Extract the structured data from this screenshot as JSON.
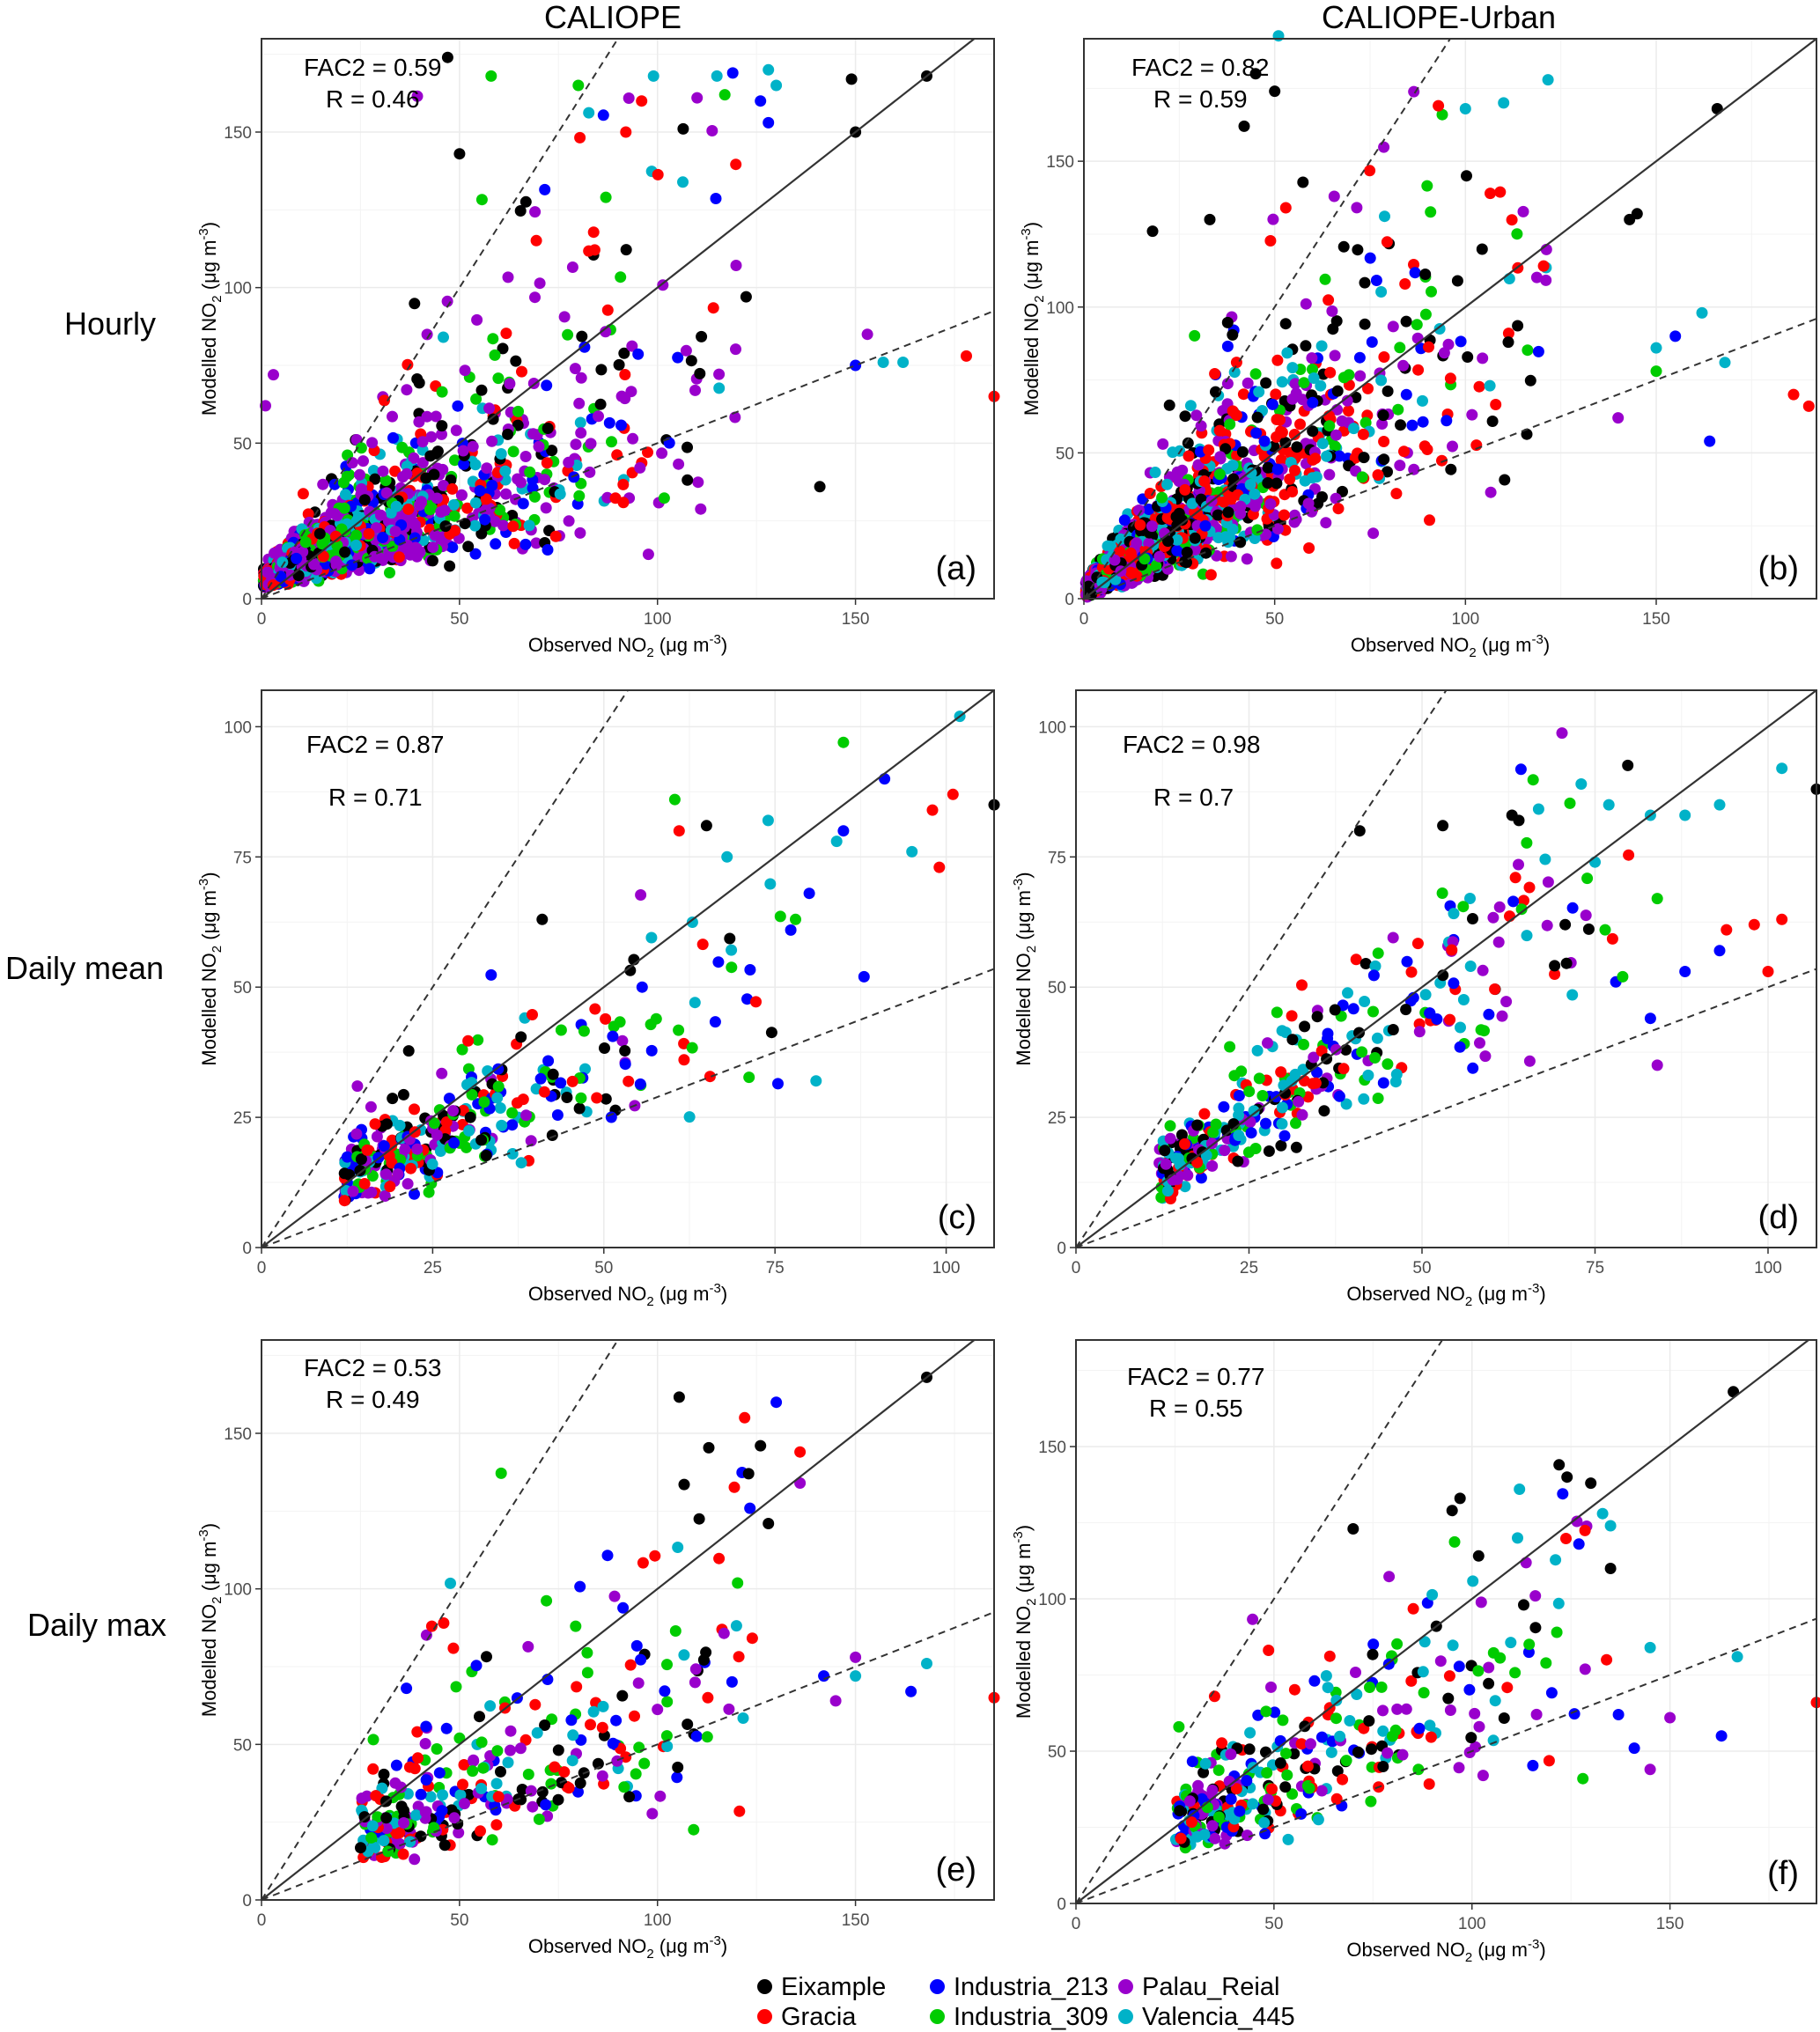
{
  "figure": {
    "column_titles": [
      "CALIOPE",
      "CALIOPE-Urban"
    ],
    "row_titles": [
      "Hourly",
      "Daily mean",
      "Daily max"
    ],
    "grid_color": "#ebebeb",
    "frame_color": "#333333",
    "one_to_one_color": "#333333",
    "fac2_line_color": "#333333"
  },
  "legend": {
    "items": [
      {
        "label": "Eixample",
        "color": "#000000"
      },
      {
        "label": "Gracia",
        "color": "#ff0000"
      },
      {
        "label": "Industria_213",
        "color": "#0000ff"
      },
      {
        "label": "Industria_309",
        "color": "#00cc00"
      },
      {
        "label": "Palau_Reial",
        "color": "#9900cc"
      },
      {
        "label": "Valencia_445",
        "color": "#00b2c8"
      }
    ]
  },
  "chart_data": [
    {
      "type": "scatter",
      "panel_label": "(a)",
      "column": "CALIOPE",
      "row": "Hourly",
      "xlabel": "Observed NO2 (μg m-3)",
      "ylabel": "Modelled NO2 (μg m-3)",
      "xlim": [
        0,
        185
      ],
      "ylim": [
        0,
        180
      ],
      "xticks": [
        0,
        50,
        100,
        150
      ],
      "yticks": [
        0,
        50,
        100,
        150
      ],
      "stats": [
        "FAC2 = 0.59",
        "R = 0.46"
      ],
      "lines": {
        "one_to_one": true,
        "fac2_upper_slope": 2,
        "fac2_lower_slope": 0.5
      },
      "cloud": {
        "n": 1500,
        "seed": 11,
        "xmax": 165,
        "xmean": 30,
        "slope": 0.55,
        "spread": 0.55,
        "offset": 6,
        "site_weights": [
          0.14,
          0.14,
          0.1,
          0.14,
          0.34,
          0.14
        ]
      },
      "series": [
        {
          "name": "Eixample",
          "points": [
            [
              168,
              168
            ],
            [
              149,
              167
            ],
            [
              150,
              150
            ],
            [
              141,
              36
            ],
            [
              47,
              174
            ],
            [
              50,
              143
            ]
          ]
        },
        {
          "name": "Gracia",
          "points": [
            [
              185,
              65
            ],
            [
              178,
              78
            ],
            [
              96,
              160
            ],
            [
              92,
              150
            ]
          ]
        },
        {
          "name": "Industria_213",
          "points": [
            [
              150,
              75
            ],
            [
              126,
              160
            ],
            [
              119,
              169
            ],
            [
              128,
              153
            ]
          ]
        },
        {
          "name": "Industria_309",
          "points": [
            [
              58,
              168
            ],
            [
              117,
              162
            ],
            [
              80,
              165
            ]
          ]
        },
        {
          "name": "Palau_Reial",
          "points": [
            [
              1,
              62
            ],
            [
              3,
              72
            ],
            [
              110,
              161
            ],
            [
              153,
              85
            ]
          ]
        },
        {
          "name": "Valencia_445",
          "points": [
            [
              115,
              168
            ],
            [
              128,
              170
            ],
            [
              130,
              165
            ],
            [
              162,
              76
            ],
            [
              157,
              76
            ],
            [
              99,
              168
            ]
          ]
        }
      ]
    },
    {
      "type": "scatter",
      "panel_label": "(b)",
      "column": "CALIOPE-Urban",
      "row": "Hourly",
      "xlabel": "Observed NO2 (μg m-3)",
      "ylabel": "Modelled NO2 (μg m-3)",
      "xlim": [
        0,
        192
      ],
      "ylim": [
        0,
        192
      ],
      "xticks": [
        0,
        50,
        100,
        150
      ],
      "yticks": [
        0,
        50,
        100,
        150
      ],
      "stats": [
        "FAC2 = 0.82",
        "R = 0.59"
      ],
      "lines": {
        "one_to_one": true,
        "fac2_upper_slope": 2,
        "fac2_lower_slope": 0.5
      },
      "cloud": {
        "n": 1500,
        "seed": 23,
        "xmax": 150,
        "xmean": 30,
        "slope": 0.85,
        "spread": 0.42,
        "offset": 3,
        "site_weights": [
          0.18,
          0.24,
          0.1,
          0.1,
          0.24,
          0.14
        ]
      },
      "series": [
        {
          "name": "Eixample",
          "points": [
            [
              166,
              168
            ],
            [
              45,
              180
            ],
            [
              50,
              174
            ],
            [
              42,
              162
            ],
            [
              18,
              126
            ],
            [
              33,
              130
            ],
            [
              143,
              130
            ],
            [
              145,
              132
            ]
          ]
        },
        {
          "name": "Gracia",
          "points": [
            [
              186,
              70
            ],
            [
              190,
              66
            ]
          ]
        },
        {
          "name": "Industria_213",
          "points": [
            [
              164,
              54
            ],
            [
              155,
              90
            ]
          ]
        },
        {
          "name": "Industria_309",
          "points": [
            [
              150,
              78
            ]
          ]
        },
        {
          "name": "Palau_Reial",
          "points": [
            [
              140,
              62
            ]
          ]
        },
        {
          "name": "Valencia_445",
          "points": [
            [
              51,
              193
            ],
            [
              100,
              168
            ],
            [
              110,
              170
            ],
            [
              150,
              86
            ],
            [
              162,
              98
            ],
            [
              168,
              81
            ]
          ]
        }
      ]
    },
    {
      "type": "scatter",
      "panel_label": "(c)",
      "column": "CALIOPE",
      "row": "Daily mean",
      "xlabel": "Observed NO2 (μg m-3)",
      "ylabel": "Modelled NO2 (μg m-3)",
      "xlim": [
        0,
        107
      ],
      "ylim": [
        0,
        107
      ],
      "xticks": [
        0,
        25,
        50,
        75,
        100
      ],
      "yticks": [
        0,
        25,
        50,
        75,
        100
      ],
      "stats": [
        "FAC2 = 0.87",
        "R = 0.71"
      ],
      "lines": {
        "one_to_one": true,
        "fac2_upper_slope": 2,
        "fac2_lower_slope": 0.5
      },
      "cloud": {
        "n": 330,
        "seed": 37,
        "xmin": 12,
        "xmax": 78,
        "xmean": 20,
        "slope": 0.62,
        "spread": 0.3,
        "offset": 6,
        "site_weights": [
          0.16,
          0.17,
          0.16,
          0.17,
          0.17,
          0.17
        ]
      },
      "series": [
        {
          "name": "Eixample",
          "points": [
            [
              107,
              85
            ],
            [
              41,
              63
            ],
            [
              65,
              81
            ]
          ]
        },
        {
          "name": "Gracia",
          "points": [
            [
              101,
              87
            ],
            [
              98,
              84
            ],
            [
              99,
              73
            ],
            [
              61,
              80
            ]
          ]
        },
        {
          "name": "Industria_213",
          "points": [
            [
              91,
              90
            ],
            [
              88,
              52
            ],
            [
              85,
              80
            ],
            [
              80,
              68
            ]
          ]
        },
        {
          "name": "Industria_309",
          "points": [
            [
              85,
              97
            ],
            [
              78,
              63
            ]
          ]
        },
        {
          "name": "Palau_Reial",
          "points": [
            [
              14,
              31
            ],
            [
              16,
              27
            ]
          ]
        },
        {
          "name": "Valencia_445",
          "points": [
            [
              102,
              102
            ],
            [
              95,
              76
            ],
            [
              84,
              78
            ],
            [
              81,
              32
            ],
            [
              74,
              82
            ],
            [
              68,
              75
            ]
          ]
        }
      ]
    },
    {
      "type": "scatter",
      "panel_label": "(d)",
      "column": "CALIOPE-Urban",
      "row": "Daily mean",
      "xlabel": "Observed NO2 (μg m-3)",
      "ylabel": "Modelled NO2 (μg m-3)",
      "xlim": [
        0,
        107
      ],
      "ylim": [
        0,
        107
      ],
      "xticks": [
        0,
        25,
        50,
        75,
        100
      ],
      "yticks": [
        0,
        25,
        50,
        75,
        100
      ],
      "stats": [
        "FAC2 = 0.98",
        "R = 0.7"
      ],
      "lines": {
        "one_to_one": true,
        "fac2_upper_slope": 2,
        "fac2_lower_slope": 0.5
      },
      "cloud": {
        "n": 330,
        "seed": 53,
        "xmin": 12,
        "xmax": 80,
        "xmean": 28,
        "slope": 0.85,
        "spread": 0.22,
        "offset": 4,
        "site_weights": [
          0.16,
          0.17,
          0.16,
          0.17,
          0.17,
          0.17
        ]
      },
      "series": [
        {
          "name": "Eixample",
          "points": [
            [
              107,
              88
            ],
            [
              41,
              80
            ],
            [
              53,
              81
            ],
            [
              63,
              83
            ],
            [
              64,
              82
            ]
          ]
        },
        {
          "name": "Gracia",
          "points": [
            [
              102,
              63
            ],
            [
              98,
              62
            ],
            [
              94,
              61
            ],
            [
              100,
              53
            ]
          ]
        },
        {
          "name": "Industria_213",
          "points": [
            [
              93,
              57
            ],
            [
              88,
              53
            ],
            [
              83,
              44
            ],
            [
              78,
              51
            ]
          ]
        },
        {
          "name": "Industria_309",
          "points": [
            [
              84,
              67
            ],
            [
              79,
              52
            ]
          ]
        },
        {
          "name": "Palau_Reial",
          "points": [
            [
              84,
              35
            ],
            [
              14,
              13
            ],
            [
              13,
              16
            ]
          ]
        },
        {
          "name": "Valencia_445",
          "points": [
            [
              102,
              92
            ],
            [
              93,
              85
            ],
            [
              88,
              83
            ],
            [
              83,
              83
            ],
            [
              77,
              85
            ],
            [
              73,
              89
            ],
            [
              75,
              74
            ]
          ]
        }
      ]
    },
    {
      "type": "scatter",
      "panel_label": "(e)",
      "column": "CALIOPE",
      "row": "Daily max",
      "xlabel": "Observed NO2 (μg m-3)",
      "ylabel": "Modelled NO2 (μg m-3)",
      "xlim": [
        0,
        185
      ],
      "ylim": [
        0,
        180
      ],
      "xticks": [
        0,
        50,
        100,
        150
      ],
      "yticks": [
        0,
        50,
        100,
        150
      ],
      "stats": [
        "FAC2 = 0.53",
        "R = 0.49"
      ],
      "lines": {
        "one_to_one": true,
        "fac2_upper_slope": 2,
        "fac2_lower_slope": 0.5
      },
      "cloud": {
        "n": 320,
        "seed": 71,
        "xmin": 25,
        "xmax": 125,
        "xmean": 50,
        "slope": 0.55,
        "spread": 0.5,
        "offset": 8,
        "site_weights": [
          0.16,
          0.17,
          0.16,
          0.17,
          0.17,
          0.17
        ]
      },
      "series": [
        {
          "name": "Eixample",
          "points": [
            [
              168,
              168
            ],
            [
              128,
              121
            ],
            [
              126,
              146
            ],
            [
              123,
              137
            ]
          ]
        },
        {
          "name": "Gracia",
          "points": [
            [
              185,
              65
            ],
            [
              136,
              144
            ],
            [
              122,
              155
            ],
            [
              43,
              88
            ],
            [
              46,
              89
            ]
          ]
        },
        {
          "name": "Industria_213",
          "points": [
            [
              164,
              67
            ],
            [
              130,
              160
            ],
            [
              142,
              72
            ]
          ]
        },
        {
          "name": "Industria_309",
          "points": [
            [
              50,
              52
            ]
          ]
        },
        {
          "name": "Palau_Reial",
          "points": [
            [
              150,
              78
            ],
            [
              145,
              64
            ],
            [
              136,
              134
            ]
          ]
        },
        {
          "name": "Valencia_445",
          "points": [
            [
              168,
              76
            ],
            [
              150,
              72
            ]
          ]
        }
      ]
    },
    {
      "type": "scatter",
      "panel_label": "(f)",
      "column": "CALIOPE-Urban",
      "row": "Daily max",
      "xlabel": "Observed NO2 (μg m-3)",
      "ylabel": "Modelled NO2 (μg m-3)",
      "xlim": [
        0,
        187
      ],
      "ylim": [
        0,
        185
      ],
      "xticks": [
        0,
        50,
        100,
        150
      ],
      "yticks": [
        0,
        50,
        100,
        150
      ],
      "stats": [
        "FAC2 = 0.77",
        "R = 0.55"
      ],
      "lines": {
        "one_to_one": true,
        "fac2_upper_slope": 2,
        "fac2_lower_slope": 0.5
      },
      "cloud": {
        "n": 330,
        "seed": 97,
        "xmin": 25,
        "xmax": 130,
        "xmean": 48,
        "slope": 0.66,
        "spread": 0.32,
        "offset": 8,
        "site_weights": [
          0.16,
          0.17,
          0.16,
          0.17,
          0.17,
          0.17
        ]
      },
      "series": [
        {
          "name": "Eixample",
          "points": [
            [
              166,
              168
            ],
            [
              122,
              144
            ],
            [
              124,
              140
            ],
            [
              130,
              138
            ],
            [
              95,
              129
            ],
            [
              97,
              133
            ],
            [
              70,
              123
            ],
            [
              135,
              110
            ]
          ]
        },
        {
          "name": "Gracia",
          "points": [
            [
              187,
              66
            ],
            [
              134,
              80
            ],
            [
              35,
              68
            ]
          ]
        },
        {
          "name": "Industria_213",
          "points": [
            [
              163,
              55
            ],
            [
              141,
              51
            ],
            [
              137,
              62
            ],
            [
              127,
              118
            ]
          ]
        },
        {
          "name": "Industria_309",
          "points": [
            [
              26,
              58
            ],
            [
              128,
              41
            ]
          ]
        },
        {
          "name": "Palau_Reial",
          "points": [
            [
              150,
              61
            ],
            [
              145,
              44
            ]
          ]
        },
        {
          "name": "Valencia_445",
          "points": [
            [
              167,
              81
            ],
            [
              145,
              84
            ],
            [
              135,
              124
            ],
            [
              133,
              128
            ],
            [
              112,
              136
            ]
          ]
        }
      ]
    }
  ]
}
